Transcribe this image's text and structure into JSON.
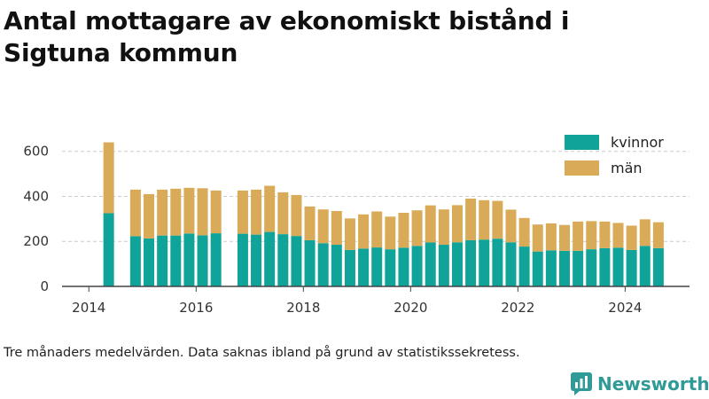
{
  "title": "Antal mottagare av ekonomiskt bistånd i Sigtuna kommun",
  "note": "Tre månaders medelvärden. Data saknas ibland på grund av statistikssekretess.",
  "brand": "Newsworthy",
  "colors": {
    "kvinnor": "#10a39a",
    "man": "#d9ab58",
    "brand": "#2f9a96"
  },
  "chart_data": {
    "type": "bar",
    "stacked": true,
    "xlim": [
      2013.5,
      2025.2
    ],
    "ylim": [
      0,
      650
    ],
    "yticks": [
      0,
      200,
      400,
      600
    ],
    "xticks": [
      "2014",
      "2016",
      "2018",
      "2020",
      "2022",
      "2024"
    ],
    "grid": "horizontal",
    "legend_position": "top-right",
    "x": [
      2014.37,
      2014.87,
      2015.12,
      2015.37,
      2015.62,
      2015.87,
      2016.12,
      2016.37,
      2016.87,
      2017.12,
      2017.37,
      2017.62,
      2017.87,
      2018.12,
      2018.37,
      2018.62,
      2018.87,
      2019.12,
      2019.37,
      2019.62,
      2019.87,
      2020.12,
      2020.37,
      2020.62,
      2020.87,
      2021.12,
      2021.37,
      2021.62,
      2021.87,
      2022.12,
      2022.37,
      2022.62,
      2022.87,
      2023.12,
      2023.37,
      2023.62,
      2023.87,
      2024.12,
      2024.37,
      2024.62
    ],
    "series": [
      {
        "name": "kvinnor",
        "color": "#10a39a",
        "values": [
          325,
          223,
          213,
          226,
          226,
          235,
          227,
          236,
          234,
          230,
          242,
          232,
          224,
          205,
          192,
          185,
          162,
          168,
          173,
          165,
          172,
          180,
          195,
          185,
          196,
          205,
          208,
          212,
          196,
          177,
          155,
          160,
          158,
          158,
          165,
          170,
          172,
          162,
          180,
          170
        ]
      },
      {
        "name": "män",
        "color": "#d9ab58",
        "values": [
          315,
          207,
          197,
          204,
          208,
          203,
          209,
          190,
          192,
          200,
          205,
          186,
          182,
          150,
          150,
          150,
          140,
          152,
          160,
          145,
          155,
          158,
          165,
          157,
          165,
          185,
          175,
          168,
          145,
          127,
          120,
          120,
          115,
          130,
          125,
          118,
          110,
          108,
          118,
          115
        ]
      }
    ]
  }
}
